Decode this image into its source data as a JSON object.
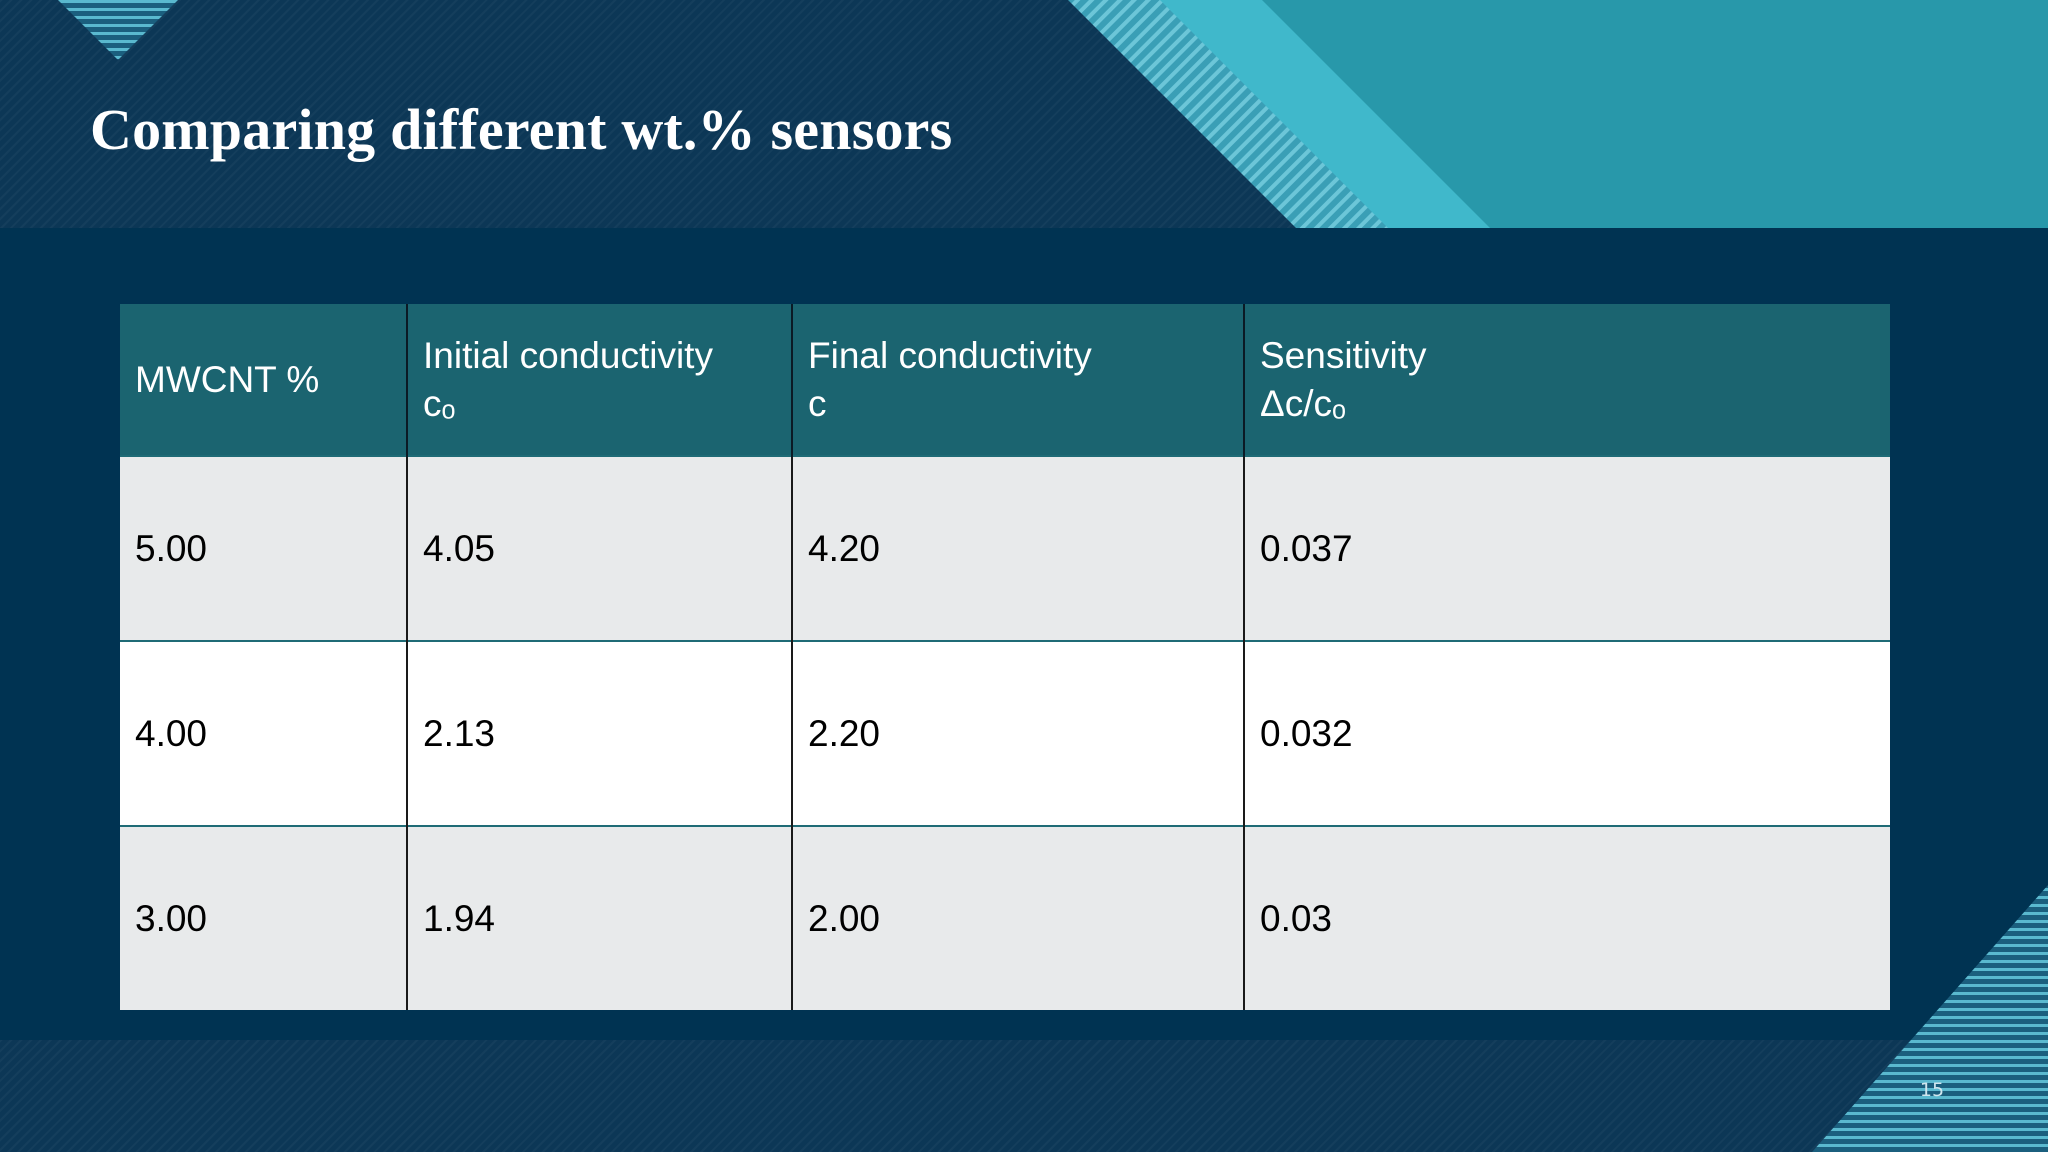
{
  "slide": {
    "title": "Comparing different wt.% sensors",
    "page_number": "15"
  },
  "table": {
    "headers": [
      {
        "line1": "MWCNT %",
        "line2": ""
      },
      {
        "line1": "Initial conductivity",
        "line2": "cₒ"
      },
      {
        "line1": "Final conductivity",
        "line2": "c"
      },
      {
        "line1": "Sensitivity",
        "line2": "Δc/cₒ"
      }
    ],
    "rows": [
      [
        "5.00",
        "4.05",
        "4.20",
        "0.037"
      ],
      [
        "4.00",
        "2.13",
        "2.20",
        "0.032"
      ],
      [
        "3.00",
        "1.94",
        "2.00",
        "0.03"
      ]
    ]
  },
  "colors": {
    "background": "#003352",
    "band": "#0c3756",
    "header_row": "#1b6470",
    "accent_teal": "#2a9aab",
    "accent_light": "#3fb8c9"
  }
}
